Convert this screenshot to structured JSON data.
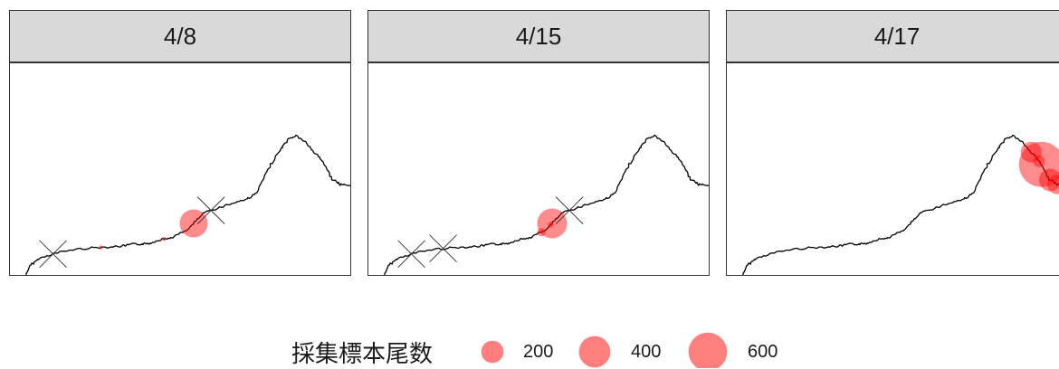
{
  "legend": {
    "title": "採集標本尾数",
    "color": "#ff0000",
    "entries": [
      {
        "label": "200",
        "value": 200
      },
      {
        "label": "400",
        "value": 400
      },
      {
        "label": "600",
        "value": 600
      }
    ]
  },
  "panels": [
    {
      "date": "4/8",
      "circles": [
        {
          "pos": 0.455,
          "count": 230
        },
        {
          "pos": 0.37,
          "count": 5
        },
        {
          "pos": 0.21,
          "count": 5
        }
      ],
      "crosses": [
        0.51,
        0.09
      ]
    },
    {
      "date": "4/15",
      "circles": [
        {
          "pos": 0.455,
          "count": 260
        },
        {
          "pos": 0.42,
          "count": 20
        },
        {
          "pos": 0.45,
          "count": 10
        }
      ],
      "crosses": [
        0.51,
        0.09,
        0.17
      ]
    },
    {
      "date": "4/17",
      "circles": [
        {
          "pos": 0.91,
          "count": 600
        },
        {
          "pos": 0.87,
          "count": 130
        },
        {
          "pos": 0.955,
          "count": 150
        },
        {
          "pos": 0.975,
          "count": 110
        },
        {
          "pos": 0.9,
          "count": 40
        }
      ],
      "crosses": []
    }
  ]
}
